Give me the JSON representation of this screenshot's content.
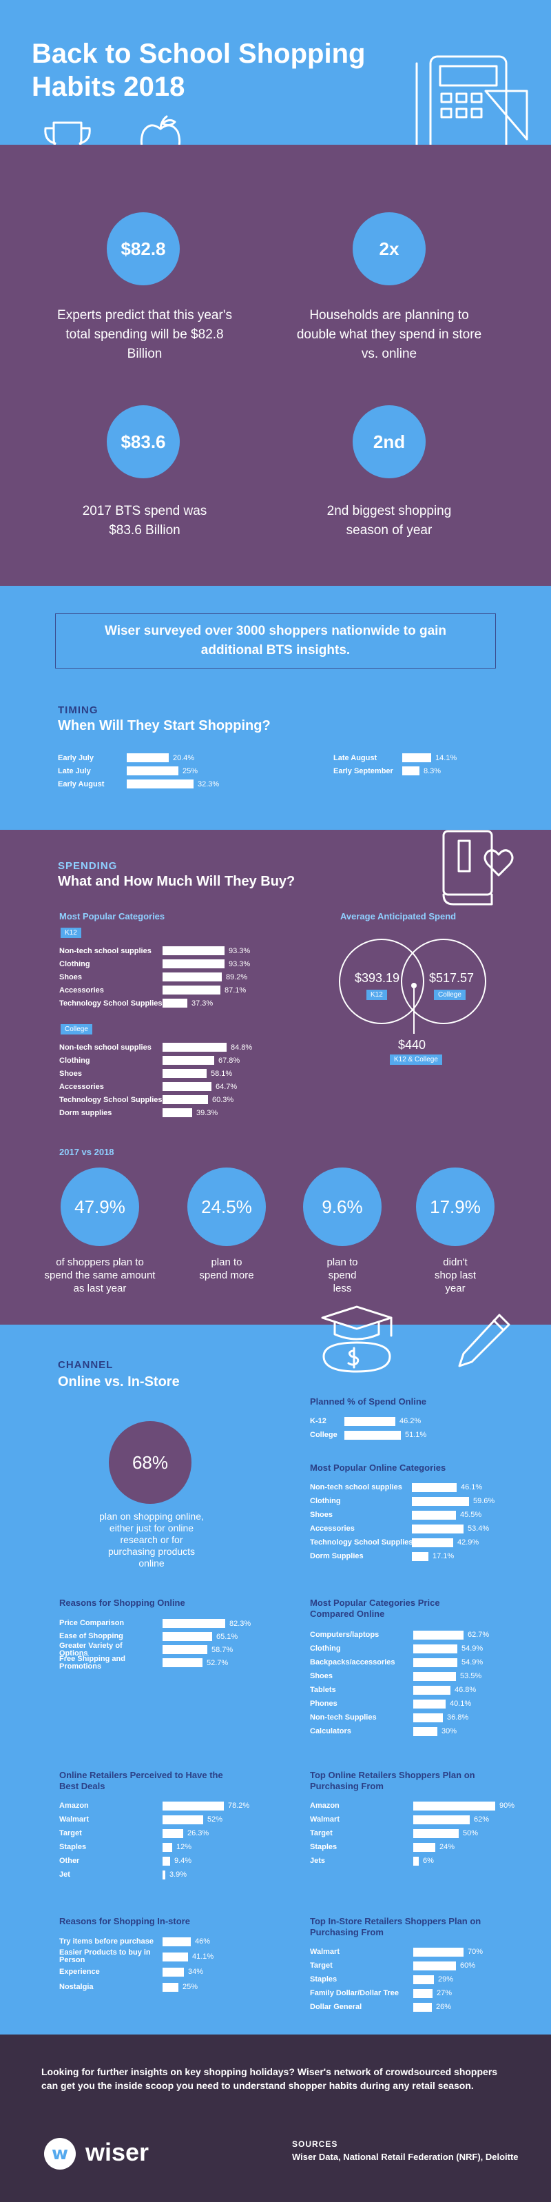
{
  "hero": {
    "title": "Back to School Shopping Habits 2018"
  },
  "stats": [
    {
      "value": "$82.8",
      "text": "Experts predict that this year's total spending will be $82.8 Billion"
    },
    {
      "value": "2x",
      "text": "Households are planning to double what they spend in store vs. online"
    },
    {
      "value": "$83.6",
      "text": "2017 BTS spend was $83.6 Billion"
    },
    {
      "value": "2nd",
      "text": "2nd biggest shopping season of year"
    }
  ],
  "survey": {
    "text": "Wiser surveyed over 3000 shoppers nationwide to gain additional BTS insights."
  },
  "timing": {
    "kicker": "TIMING",
    "heading": "When Will They Start Shopping?",
    "left": [
      {
        "label": "Early July",
        "value": 20.4,
        "display": "20.4%"
      },
      {
        "label": "Late July",
        "value": 25,
        "display": "25%"
      },
      {
        "label": "Early August",
        "value": 32.3,
        "display": "32.3%"
      }
    ],
    "right": [
      {
        "label": "Late August",
        "value": 14.1,
        "display": "14.1%"
      },
      {
        "label": "Early September",
        "value": 8.3,
        "display": "8.3%"
      }
    ]
  },
  "spending": {
    "kicker": "SPENDING",
    "heading": "What and How Much Will They Buy?",
    "categories_title": "Most Popular Categories",
    "k12_label": "K12",
    "k12": [
      {
        "label": "Non-tech school supplies",
        "value": 93.3,
        "display": "93.3%"
      },
      {
        "label": "Clothing",
        "value": 93.3,
        "display": "93.3%"
      },
      {
        "label": "Shoes",
        "value": 89.2,
        "display": "89.2%"
      },
      {
        "label": "Accessories",
        "value": 87.1,
        "display": "87.1%"
      },
      {
        "label": "Technology School Supplies",
        "value": 37.3,
        "display": "37.3%"
      }
    ],
    "college_label": "College",
    "college": [
      {
        "label": "Non-tech school supplies",
        "value": 84.8,
        "display": "84.8%"
      },
      {
        "label": "Clothing",
        "value": 67.8,
        "display": "67.8%"
      },
      {
        "label": "Shoes",
        "value": 58.1,
        "display": "58.1%"
      },
      {
        "label": "Accessories",
        "value": 64.7,
        "display": "64.7%"
      },
      {
        "label": "Technology School Supplies",
        "value": 60.3,
        "display": "60.3%"
      },
      {
        "label": "Dorm supplies",
        "value": 39.3,
        "display": "39.3%"
      }
    ],
    "avg_title": "Average Anticipated Spend",
    "avg_k12": "$393.19",
    "avg_k12_label": "K12",
    "avg_college": "$517.57",
    "avg_college_label": "College",
    "avg_both": "$440",
    "avg_both_label": "K12 & College",
    "vs_title": "2017 vs 2018",
    "vs": [
      {
        "value": "47.9%",
        "text": "of shoppers plan to spend the same amount as last year"
      },
      {
        "value": "24.5%",
        "text": "plan to spend more"
      },
      {
        "value": "9.6%",
        "text": "plan to spend less"
      },
      {
        "value": "17.9%",
        "text": "didn't shop last year"
      }
    ]
  },
  "channel": {
    "kicker": "CHANNEL",
    "heading": "Online vs. In-Store",
    "online_value": "68%",
    "online_text": "plan on shopping online, either just for online research or for purchasing products online",
    "planned_title": "Planned % of Spend Online",
    "planned": [
      {
        "label": "K-12",
        "value": 46.2,
        "display": "46.2%"
      },
      {
        "label": "College",
        "value": 51.1,
        "display": "51.1%"
      }
    ],
    "online_cat_title": "Most Popular Online Categories",
    "online_cat": [
      {
        "label": "Non-tech school supplies",
        "value": 46.1,
        "display": "46.1%"
      },
      {
        "label": "Clothing",
        "value": 59.6,
        "display": "59.6%"
      },
      {
        "label": "Shoes",
        "value": 45.5,
        "display": "45.5%"
      },
      {
        "label": "Accessories",
        "value": 53.4,
        "display": "53.4%"
      },
      {
        "label": "Technology School Supplies",
        "value": 42.9,
        "display": "42.9%"
      },
      {
        "label": "Dorm Supplies",
        "value": 17.1,
        "display": "17.1%"
      }
    ],
    "reasons_online_title": "Reasons for Shopping Online",
    "reasons_online": [
      {
        "label": "Price Comparison",
        "value": 82.3,
        "display": "82.3%"
      },
      {
        "label": "Ease of Shopping",
        "value": 65.1,
        "display": "65.1%"
      },
      {
        "label": "Greater Variety of Options",
        "value": 58.7,
        "display": "58.7%"
      },
      {
        "label": "Free Shipping and Promotions",
        "value": 52.7,
        "display": "52.7%"
      }
    ],
    "price_cmp_title": "Most Popular Categories Price Compared Online",
    "price_cmp": [
      {
        "label": "Computers/laptops",
        "value": 62.7,
        "display": "62.7%"
      },
      {
        "label": "Clothing",
        "value": 54.9,
        "display": "54.9%"
      },
      {
        "label": "Backpacks/accessories",
        "value": 54.9,
        "display": "54.9%"
      },
      {
        "label": "Shoes",
        "value": 53.5,
        "display": "53.5%"
      },
      {
        "label": "Tablets",
        "value": 46.8,
        "display": "46.8%"
      },
      {
        "label": "Phones",
        "value": 40.1,
        "display": "40.1%"
      },
      {
        "label": "Non-tech Supplies",
        "value": 36.8,
        "display": "36.8%"
      },
      {
        "label": "Calculators",
        "value": 30,
        "display": "30%"
      }
    ],
    "deals_title": "Online Retailers Perceived to Have the Best Deals",
    "deals": [
      {
        "label": "Amazon",
        "value": 78.2,
        "display": "78.2%"
      },
      {
        "label": "Walmart",
        "value": 52,
        "display": "52%"
      },
      {
        "label": "Target",
        "value": 26.3,
        "display": "26.3%"
      },
      {
        "label": "Staples",
        "value": 12,
        "display": "12%"
      },
      {
        "label": "Other",
        "value": 9.4,
        "display": "9.4%"
      },
      {
        "label": "Jet",
        "value": 3.9,
        "display": "3.9%"
      }
    ],
    "top_online_title": "Top Online Retailers Shoppers Plan on Purchasing From",
    "top_online": [
      {
        "label": "Amazon",
        "value": 90,
        "display": "90%"
      },
      {
        "label": "Walmart",
        "value": 62,
        "display": "62%"
      },
      {
        "label": "Target",
        "value": 50,
        "display": "50%"
      },
      {
        "label": "Staples",
        "value": 24,
        "display": "24%"
      },
      {
        "label": "Jets",
        "value": 6,
        "display": "6%"
      }
    ],
    "reasons_store_title": "Reasons for Shopping In-store",
    "reasons_store": [
      {
        "label": "Try items before purchase",
        "value": 46,
        "display": "46%"
      },
      {
        "label": "Easier Products to buy in Person",
        "value": 41.1,
        "display": "41.1%"
      },
      {
        "label": "Experience",
        "value": 34,
        "display": "34%"
      },
      {
        "label": "Nostalgia",
        "value": 25,
        "display": "25%"
      }
    ],
    "top_store_title": "Top In-Store Retailers Shoppers Plan on Purchasing From",
    "top_store": [
      {
        "label": "Walmart",
        "value": 70,
        "display": "70%"
      },
      {
        "label": "Target",
        "value": 60,
        "display": "60%"
      },
      {
        "label": "Staples",
        "value": 29,
        "display": "29%"
      },
      {
        "label": "Family Dollar/Dollar Tree",
        "value": 27,
        "display": "27%"
      },
      {
        "label": "Dollar General",
        "value": 26,
        "display": "26%"
      }
    ]
  },
  "footer": {
    "cta": "Looking for further insights on key shopping holidays? Wiser's network of crowdsourced shoppers can get you the inside scoop you need to understand shopper habits during any retail season.",
    "logo_text": "wiser",
    "sources_label": "SOURCES",
    "sources_text": "Wiser Data, National Retail Federation (NRF), Deloitte"
  },
  "colors": {
    "blue": "#55a9ee",
    "purple": "#6c4b77",
    "dark": "#3b2f45",
    "navy": "#2b3f86"
  }
}
